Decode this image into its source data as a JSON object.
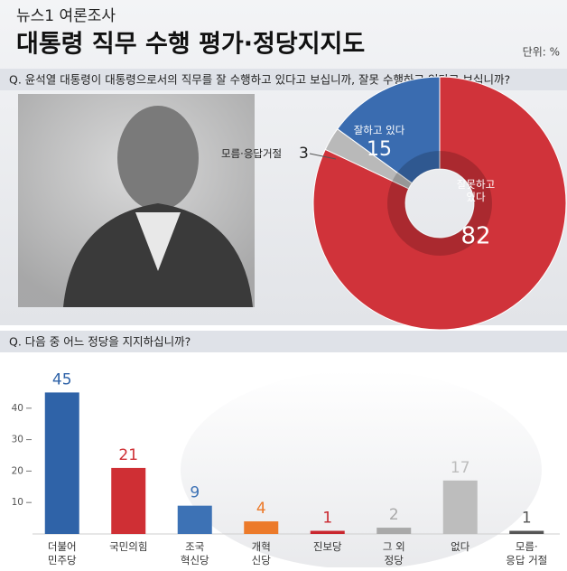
{
  "header": {
    "brand": "뉴스1 여론조사",
    "title": "대통령 직무 수행 평가·정당지지도",
    "unit": "단위: %"
  },
  "chart_data": [
    {
      "type": "pie",
      "title": "Q. 윤석열 대통령이 대통령으로서의 직무를 잘 수행하고 있다고 보십니까, 잘못 수행하고 있다고 보십니까?",
      "categories": [
        [
          "잘못하고",
          "있다"
        ],
        [
          "모름·응답거절"
        ],
        [
          "잘하고 있다"
        ]
      ],
      "values": [
        82,
        3,
        15
      ],
      "colors": [
        "#d0333a",
        "#b9b9b9",
        "#3a6cb0"
      ]
    },
    {
      "type": "bar",
      "title": "Q. 다음 중 어느 정당을 지지하십니까?",
      "categories": [
        [
          "더불어",
          "민주당"
        ],
        [
          "국민의힘"
        ],
        [
          "조국",
          "혁신당"
        ],
        [
          "개혁",
          "신당"
        ],
        [
          "진보당"
        ],
        [
          "그 외",
          "정당"
        ],
        [
          "없다"
        ],
        [
          "모름·",
          "응답 거절"
        ]
      ],
      "values": [
        45,
        21,
        9,
        4,
        1,
        2,
        17,
        1
      ],
      "colors": [
        "#2f63a8",
        "#cf2f34",
        "#3d72b5",
        "#ec7a2a",
        "#c9262e",
        "#a9a9a9",
        "#bdbdbd",
        "#555555"
      ],
      "ylim": [
        0,
        50
      ],
      "yticks": [
        10,
        20,
        30,
        40
      ]
    }
  ]
}
